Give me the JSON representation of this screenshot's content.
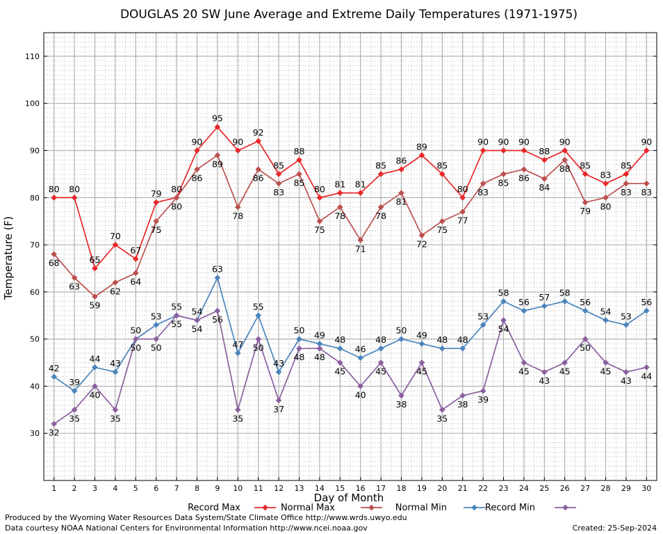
{
  "chart_data": {
    "type": "line",
    "title": "DOUGLAS 20 SW June Average and Extreme Daily Temperatures (1971-1975)",
    "xlabel": "Day of Month",
    "ylabel": "Temperature (F)",
    "x": [
      1,
      2,
      3,
      4,
      5,
      6,
      7,
      8,
      9,
      10,
      11,
      12,
      13,
      14,
      15,
      16,
      17,
      18,
      19,
      20,
      21,
      22,
      23,
      24,
      25,
      26,
      27,
      28,
      29,
      30
    ],
    "xlim": [
      0.5,
      30.5
    ],
    "ylim": [
      20,
      115
    ],
    "yticks": [
      30,
      40,
      50,
      60,
      70,
      80,
      90,
      100,
      110
    ],
    "grid": true,
    "legend_position": "bottom",
    "series": [
      {
        "name": "Record Max",
        "color": "#e8282a",
        "values": [
          80,
          80,
          65,
          70,
          67,
          79,
          80,
          90,
          95,
          90,
          92,
          85,
          88,
          80,
          81,
          81,
          85,
          86,
          89,
          85,
          80,
          90,
          90,
          90,
          88,
          90,
          85,
          83,
          85,
          90
        ]
      },
      {
        "name": "Normal Max",
        "color": "#bc4f4f",
        "values": [
          68,
          63,
          59,
          62,
          64,
          75,
          80,
          86,
          89,
          78,
          86,
          83,
          85,
          75,
          78,
          71,
          78,
          81,
          72,
          75,
          77,
          83,
          85,
          86,
          84,
          88,
          79,
          80,
          83,
          83
        ]
      },
      {
        "name": "Normal Min",
        "color": "#4a84bc",
        "values": [
          42,
          39,
          44,
          43,
          50,
          53,
          55,
          54,
          63,
          47,
          55,
          43,
          50,
          49,
          48,
          46,
          48,
          50,
          49,
          48,
          48,
          53,
          58,
          56,
          57,
          58,
          56,
          54,
          53,
          56
        ]
      },
      {
        "name": "Record Min",
        "color": "#8a5f9e",
        "values": [
          32,
          35,
          40,
          35,
          50,
          50,
          55,
          54,
          56,
          35,
          50,
          37,
          48,
          48,
          45,
          40,
          45,
          38,
          45,
          35,
          38,
          39,
          54,
          45,
          43,
          45,
          50,
          45,
          43,
          44
        ]
      }
    ]
  },
  "footer": {
    "produced_by": "Produced by the Wyoming Water Resources Data System/State Climate Office http://www.wrds.uwyo.edu",
    "courtesy": "Data courtesy NOAA National Centers for Environmental Information http://www.ncei.noaa.gov",
    "created": "Created:  25-Sep-2024"
  }
}
